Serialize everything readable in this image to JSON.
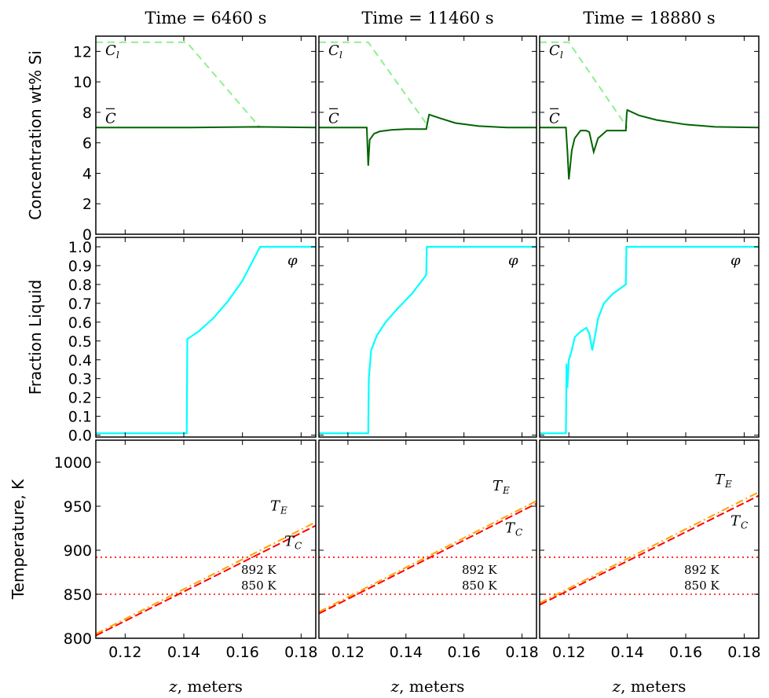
{
  "chart_data": {
    "type": "line",
    "layout": "3x3 grid of panels; columns = times, rows = concentration, fraction liquid, temperature",
    "columns": [
      {
        "title": "Time = 6460 s"
      },
      {
        "title": "Time = 11460 s"
      },
      {
        "title": "Time = 18880 s"
      }
    ],
    "xlabel": "z, meters",
    "xlim": [
      0.11,
      0.185
    ],
    "xticks": [
      0.12,
      0.14,
      0.16,
      0.18
    ],
    "rows": [
      {
        "key": "concentration",
        "ylabel": "Concentration wt% Si",
        "ylim": [
          0,
          13
        ],
        "yticks": [
          0,
          2,
          4,
          6,
          8,
          10,
          12
        ],
        "labels": {
          "cl": "C",
          "cl_sub": "l",
          "cbar": "C"
        },
        "series_colors": {
          "cl": "#90ee90",
          "cbar": "#006400"
        },
        "panels": [
          {
            "cl": {
              "x": [
                0.11,
                0.141,
                0.166
              ],
              "y": [
                12.6,
                12.6,
                7.0
              ]
            },
            "cbar": {
              "x": [
                0.11,
                0.142,
                0.165,
                0.185
              ],
              "y": [
                7.0,
                7.0,
                7.05,
                7.0
              ]
            }
          },
          {
            "cl": {
              "x": [
                0.11,
                0.127,
                0.148
              ],
              "y": [
                12.6,
                12.6,
                7.0
              ]
            },
            "cbar": {
              "x": [
                0.11,
                0.1265,
                0.127,
                0.1275,
                0.129,
                0.131,
                0.135,
                0.14,
                0.147,
                0.1477,
                0.148,
                0.152,
                0.157,
                0.165,
                0.175,
                0.185
              ],
              "y": [
                7.0,
                7.0,
                4.5,
                6.2,
                6.6,
                6.75,
                6.85,
                6.9,
                6.9,
                7.6,
                7.85,
                7.6,
                7.3,
                7.1,
                7.0,
                7.0
              ]
            }
          },
          {
            "cl": {
              "x": [
                0.11,
                0.12,
                0.14
              ],
              "y": [
                12.6,
                12.6,
                7.0
              ]
            },
            "cbar": {
              "x": [
                0.11,
                0.119,
                0.1195,
                0.12,
                0.121,
                0.122,
                0.124,
                0.126,
                0.127,
                0.1285,
                0.13,
                0.133,
                0.135,
                0.1395,
                0.1398,
                0.14,
                0.144,
                0.15,
                0.16,
                0.17,
                0.185
              ],
              "y": [
                7.0,
                7.0,
                5.5,
                3.6,
                5.5,
                6.3,
                6.8,
                6.8,
                6.7,
                5.4,
                6.3,
                6.8,
                6.8,
                6.8,
                7.9,
                8.15,
                7.8,
                7.5,
                7.2,
                7.05,
                7.0
              ]
            }
          }
        ]
      },
      {
        "key": "fraction_liquid",
        "ylabel": "Fraction Liquid",
        "ylim": [
          -0.01,
          1.05
        ],
        "yticks": [
          0.0,
          0.1,
          0.2,
          0.3,
          0.4,
          0.5,
          0.6,
          0.7,
          0.8,
          0.9,
          1.0
        ],
        "labels": {
          "phi": "φ"
        },
        "series_colors": {
          "phi": "#00ffff"
        },
        "panels": [
          {
            "phi": {
              "x": [
                0.11,
                0.141,
                0.1412,
                0.145,
                0.15,
                0.155,
                0.16,
                0.166,
                0.185
              ],
              "y": [
                0.01,
                0.01,
                0.51,
                0.55,
                0.62,
                0.71,
                0.82,
                1.0,
                1.0
              ]
            }
          },
          {
            "phi": {
              "x": [
                0.11,
                0.127,
                0.1272,
                0.128,
                0.13,
                0.133,
                0.137,
                0.142,
                0.147,
                0.1472,
                0.148,
                0.185
              ],
              "y": [
                0.01,
                0.01,
                0.3,
                0.45,
                0.53,
                0.6,
                0.67,
                0.75,
                0.85,
                1.0,
                1.0,
                1.0
              ]
            }
          },
          {
            "phi": {
              "x": [
                0.11,
                0.119,
                0.1192,
                0.1195,
                0.12,
                0.121,
                0.122,
                0.124,
                0.126,
                0.127,
                0.128,
                0.129,
                0.13,
                0.132,
                0.135,
                0.1395,
                0.1397,
                0.14,
                0.185
              ],
              "y": [
                0.01,
                0.01,
                0.38,
                0.25,
                0.4,
                0.45,
                0.52,
                0.55,
                0.57,
                0.54,
                0.45,
                0.53,
                0.62,
                0.7,
                0.75,
                0.8,
                1.0,
                1.0,
                1.0
              ]
            }
          }
        ]
      },
      {
        "key": "temperature",
        "ylabel": "Temperature, K",
        "ylim": [
          800,
          1025
        ],
        "yticks": [
          800,
          850,
          900,
          950,
          1000
        ],
        "labels": {
          "te": "T",
          "te_sub": "E",
          "tc": "T",
          "tc_sub": "C",
          "l892": "892 K",
          "l850": "850 K"
        },
        "levels": [
          892,
          850
        ],
        "series_colors": {
          "te": "#ffa500",
          "tc": "#ff0000",
          "levels": "#ff0000"
        },
        "panels": [
          {
            "te": {
              "x": [
                0.11,
                0.185
              ],
              "y": [
                805,
                932
              ]
            },
            "tc": {
              "x": [
                0.11,
                0.185
              ],
              "y": [
                803,
                928
              ]
            }
          },
          {
            "te": {
              "x": [
                0.11,
                0.185
              ],
              "y": [
                830,
                956
              ]
            },
            "tc": {
              "x": [
                0.11,
                0.185
              ],
              "y": [
                828,
                953
              ]
            }
          },
          {
            "te": {
              "x": [
                0.11,
                0.185
              ],
              "y": [
                840,
                966
              ]
            },
            "tc": {
              "x": [
                0.11,
                0.185
              ],
              "y": [
                838,
                962
              ]
            }
          }
        ]
      }
    ]
  }
}
